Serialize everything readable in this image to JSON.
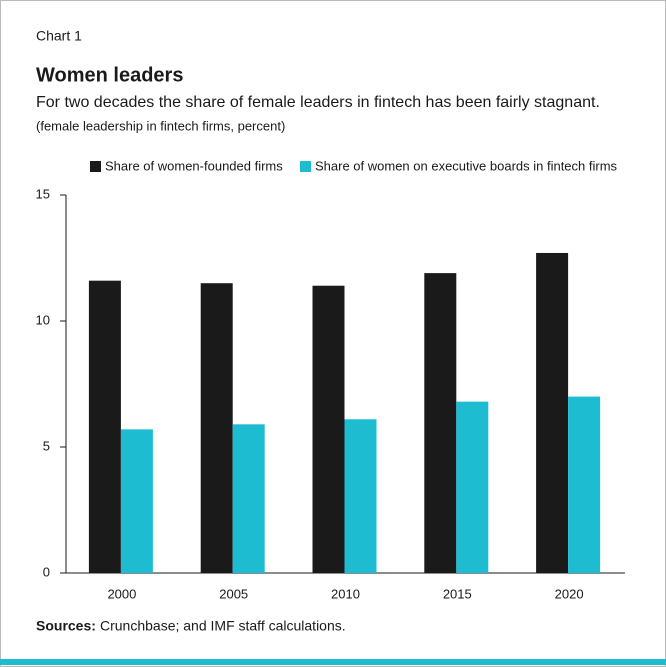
{
  "chart_data": {
    "type": "bar",
    "label": "Chart 1",
    "title": "Women leaders",
    "subtitle": "For two decades the share of female leaders in fintech has been fairly stagnant.",
    "note": "(female leadership in fintech firms, percent)",
    "categories": [
      "2000",
      "2005",
      "2010",
      "2015",
      "2020"
    ],
    "series": [
      {
        "name": "Share of women-founded firms",
        "color": "#1a1a1a",
        "values": [
          11.6,
          11.5,
          11.4,
          11.9,
          12.7
        ]
      },
      {
        "name": "Share of women on executive boards in fintech firms",
        "color": "#1ebcd0",
        "values": [
          5.7,
          5.9,
          6.1,
          6.8,
          7.0
        ]
      }
    ],
    "ylim": [
      0,
      15
    ],
    "yticks": [
      0,
      5,
      10,
      15
    ],
    "grid": false,
    "sources_label": "Sources:",
    "sources_text": "Crunchbase; and IMF staff calculations."
  }
}
